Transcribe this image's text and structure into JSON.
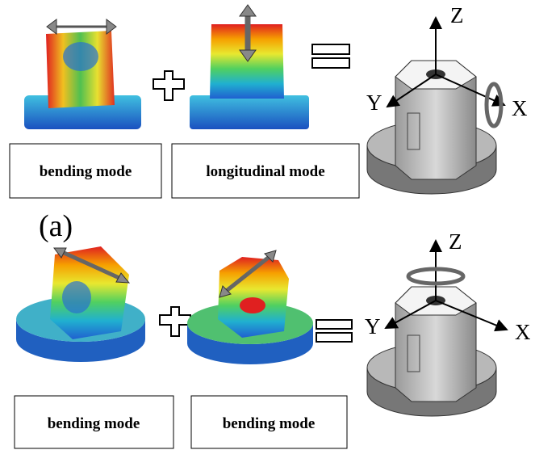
{
  "top_row": {
    "labels": [
      "bending mode",
      "longitudinal mode"
    ],
    "axes": {
      "z": "Z",
      "y": "Y",
      "x": "X"
    }
  },
  "caption": "(a)",
  "bottom_row": {
    "labels": [
      "bending mode",
      "bending mode"
    ],
    "axes": {
      "z": "Z",
      "y": "Y",
      "x": "X"
    }
  }
}
